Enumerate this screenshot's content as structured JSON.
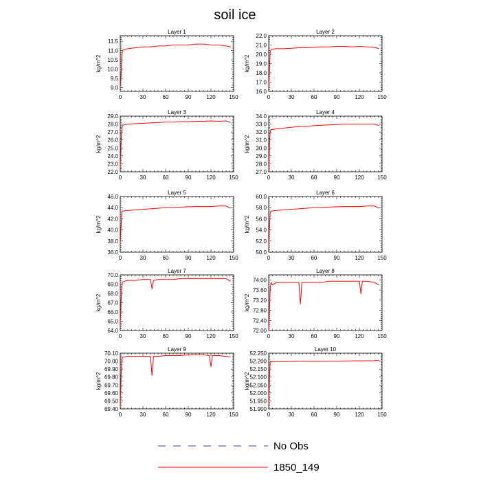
{
  "figure": {
    "title": "soil ice",
    "legend": [
      {
        "label": "No Obs",
        "color": "#3b3bb0",
        "dash": "dashed"
      },
      {
        "label": "1850_149",
        "color": "#ff0000",
        "dash": "solid"
      }
    ]
  },
  "chart_data": [
    {
      "type": "line",
      "title": "Layer 1",
      "ylabel": "kg/m^2",
      "xlim": [
        0,
        150
      ],
      "xticks": [
        0,
        30,
        60,
        90,
        120,
        150
      ],
      "ylim": [
        8.8,
        11.8
      ],
      "yticks": [
        "9.0",
        "9.5",
        "10.0",
        "10.5",
        "11.0",
        "11.5"
      ],
      "series": [
        {
          "name": "1850_149",
          "color": "#ff0000",
          "x": [
            0,
            1,
            2,
            3,
            5,
            10,
            20,
            30,
            40,
            50,
            60,
            70,
            80,
            90,
            100,
            110,
            120,
            130,
            140,
            146
          ],
          "y": [
            9.0,
            9.6,
            10.6,
            11.0,
            11.05,
            11.1,
            11.15,
            11.2,
            11.2,
            11.25,
            11.25,
            11.3,
            11.3,
            11.3,
            11.35,
            11.35,
            11.3,
            11.3,
            11.25,
            11.2
          ]
        }
      ]
    },
    {
      "type": "line",
      "title": "Layer 2",
      "ylabel": "kg/m^2",
      "xlim": [
        0,
        150
      ],
      "xticks": [
        0,
        30,
        60,
        90,
        120,
        150
      ],
      "ylim": [
        16.0,
        22.0
      ],
      "yticks": [
        "16.0",
        "17.0",
        "18.0",
        "19.0",
        "20.0",
        "21.0",
        "22.0"
      ],
      "series": [
        {
          "name": "1850_149",
          "color": "#ff0000",
          "x": [
            0,
            1,
            2,
            3,
            5,
            10,
            20,
            30,
            40,
            50,
            60,
            70,
            80,
            90,
            100,
            110,
            120,
            130,
            140,
            146
          ],
          "y": [
            16.5,
            18.5,
            20.2,
            20.5,
            20.55,
            20.6,
            20.6,
            20.65,
            20.7,
            20.7,
            20.75,
            20.8,
            20.8,
            20.85,
            20.85,
            20.8,
            20.85,
            20.8,
            20.75,
            20.6
          ]
        }
      ]
    },
    {
      "type": "line",
      "title": "Layer 3",
      "ylabel": "kg/m^2",
      "xlim": [
        0,
        150
      ],
      "xticks": [
        0,
        30,
        60,
        90,
        120,
        150
      ],
      "ylim": [
        22.0,
        29.0
      ],
      "yticks": [
        "22.0",
        "23.0",
        "24.0",
        "25.0",
        "26.0",
        "27.0",
        "28.0",
        "29.0"
      ],
      "series": [
        {
          "name": "1850_149",
          "color": "#ff0000",
          "x": [
            0,
            1,
            2,
            3,
            5,
            10,
            20,
            30,
            40,
            50,
            60,
            70,
            80,
            90,
            100,
            110,
            120,
            130,
            140,
            146
          ],
          "y": [
            22.5,
            25.5,
            27.3,
            27.8,
            27.9,
            28.0,
            28.05,
            28.1,
            28.15,
            28.2,
            28.25,
            28.25,
            28.3,
            28.3,
            28.35,
            28.35,
            28.4,
            28.35,
            28.4,
            28.2
          ]
        }
      ]
    },
    {
      "type": "line",
      "title": "Layer 4",
      "ylabel": "kg/m^2",
      "xlim": [
        0,
        150
      ],
      "xticks": [
        0,
        30,
        60,
        90,
        120,
        150
      ],
      "ylim": [
        27.0,
        34.0
      ],
      "yticks": [
        "27.0",
        "28.0",
        "29.0",
        "30.0",
        "31.0",
        "32.0",
        "33.0",
        "34.0"
      ],
      "series": [
        {
          "name": "1850_149",
          "color": "#ff0000",
          "x": [
            0,
            1,
            2,
            3,
            5,
            10,
            20,
            30,
            40,
            50,
            60,
            70,
            80,
            90,
            100,
            110,
            120,
            130,
            140,
            146
          ],
          "y": [
            27.3,
            30.5,
            32.0,
            32.3,
            32.3,
            32.4,
            32.5,
            32.6,
            32.7,
            32.7,
            32.8,
            32.85,
            32.9,
            32.95,
            33.0,
            33.0,
            33.0,
            33.0,
            33.0,
            32.8
          ]
        }
      ]
    },
    {
      "type": "line",
      "title": "Layer 5",
      "ylabel": "kg/m^2",
      "xlim": [
        0,
        150
      ],
      "xticks": [
        0,
        30,
        60,
        90,
        120,
        150
      ],
      "ylim": [
        36.0,
        46.0
      ],
      "yticks": [
        "36.0",
        "38.0",
        "40.0",
        "42.0",
        "44.0",
        "46.0"
      ],
      "series": [
        {
          "name": "1850_149",
          "color": "#ff0000",
          "x": [
            0,
            1,
            2,
            3,
            5,
            10,
            20,
            30,
            40,
            50,
            60,
            70,
            80,
            90,
            100,
            110,
            120,
            130,
            140,
            146
          ],
          "y": [
            37.2,
            40.5,
            43.0,
            43.4,
            43.4,
            43.5,
            43.6,
            43.7,
            43.8,
            43.9,
            44.0,
            44.0,
            44.1,
            44.15,
            44.2,
            44.2,
            44.2,
            44.3,
            44.3,
            43.9
          ]
        }
      ]
    },
    {
      "type": "line",
      "title": "Layer 6",
      "ylabel": "kg/m^2",
      "xlim": [
        0,
        150
      ],
      "xticks": [
        0,
        30,
        60,
        90,
        120,
        150
      ],
      "ylim": [
        50.0,
        60.0
      ],
      "yticks": [
        "50.0",
        "52.0",
        "54.0",
        "56.0",
        "58.0",
        "60.0"
      ],
      "series": [
        {
          "name": "1850_149",
          "color": "#ff0000",
          "x": [
            0,
            1,
            2,
            3,
            5,
            10,
            20,
            30,
            40,
            50,
            60,
            70,
            80,
            90,
            100,
            110,
            120,
            130,
            140,
            146
          ],
          "y": [
            50.8,
            54.5,
            57.0,
            57.4,
            57.4,
            57.5,
            57.6,
            57.7,
            57.8,
            57.9,
            58.0,
            58.0,
            58.1,
            58.15,
            58.2,
            58.2,
            58.2,
            58.3,
            58.3,
            57.9
          ]
        }
      ]
    },
    {
      "type": "line",
      "title": "Layer 7",
      "ylabel": "kg/m^2",
      "xlim": [
        0,
        150
      ],
      "xticks": [
        0,
        30,
        60,
        90,
        120,
        150
      ],
      "ylim": [
        64.0,
        70.0
      ],
      "yticks": [
        "64.0",
        "65.0",
        "66.0",
        "67.0",
        "68.0",
        "69.0",
        "70.0"
      ],
      "series": [
        {
          "name": "1850_149",
          "color": "#ff0000",
          "x": [
            0,
            1,
            2,
            3,
            5,
            10,
            20,
            30,
            40,
            42,
            44,
            50,
            60,
            70,
            80,
            90,
            100,
            110,
            120,
            130,
            140,
            146
          ],
          "y": [
            64.5,
            67.0,
            68.8,
            69.2,
            69.3,
            69.4,
            69.4,
            69.5,
            69.5,
            68.5,
            69.4,
            69.5,
            69.5,
            69.5,
            69.6,
            69.6,
            69.6,
            69.6,
            69.6,
            69.6,
            69.6,
            69.3
          ]
        }
      ]
    },
    {
      "type": "line",
      "title": "Layer 8",
      "ylabel": "kg/m^2",
      "xlim": [
        0,
        150
      ],
      "xticks": [
        0,
        30,
        60,
        90,
        120,
        150
      ],
      "ylim": [
        72.0,
        74.2
      ],
      "yticks": [
        "72.00",
        "72.40",
        "72.80",
        "73.20",
        "73.60",
        "74.00"
      ],
      "series": [
        {
          "name": "1850_149",
          "color": "#ff0000",
          "x": [
            0,
            1,
            2,
            3,
            5,
            10,
            20,
            30,
            40,
            42,
            44,
            50,
            60,
            70,
            80,
            90,
            100,
            110,
            120,
            122,
            124,
            130,
            140,
            146
          ],
          "y": [
            72.0,
            72.8,
            73.6,
            73.9,
            73.8,
            73.9,
            73.9,
            73.9,
            73.9,
            73.05,
            73.9,
            73.9,
            73.9,
            73.9,
            73.95,
            73.95,
            73.95,
            73.95,
            73.95,
            73.45,
            73.95,
            73.95,
            73.9,
            73.8
          ]
        }
      ]
    },
    {
      "type": "line",
      "title": "Layer 9",
      "ylabel": "kg/m^2",
      "xlim": [
        0,
        150
      ],
      "xticks": [
        0,
        30,
        60,
        90,
        120,
        150
      ],
      "ylim": [
        69.4,
        70.1
      ],
      "yticks": [
        "69.40",
        "69.50",
        "69.60",
        "69.70",
        "69.80",
        "69.90",
        "70.00",
        "70.10"
      ],
      "series": [
        {
          "name": "1850_149",
          "color": "#ff0000",
          "x": [
            0,
            1,
            2,
            3,
            5,
            10,
            20,
            30,
            40,
            42,
            44,
            50,
            60,
            70,
            80,
            90,
            100,
            110,
            118,
            120,
            122,
            130,
            140,
            146
          ],
          "y": [
            69.42,
            69.8,
            70.0,
            70.05,
            70.05,
            70.06,
            70.06,
            70.06,
            70.06,
            69.82,
            70.06,
            70.06,
            70.07,
            70.07,
            70.07,
            70.08,
            70.08,
            70.08,
            70.07,
            69.93,
            70.07,
            70.07,
            70.06,
            70.05
          ]
        }
      ]
    },
    {
      "type": "line",
      "title": "Layer 10",
      "ylabel": "kg/m^2",
      "xlim": [
        0,
        150
      ],
      "xticks": [
        0,
        30,
        60,
        90,
        120,
        150
      ],
      "ylim": [
        51.9,
        52.25
      ],
      "yticks": [
        "51.900",
        "51.950",
        "52.000",
        "52.050",
        "52.100",
        "52.150",
        "52.200",
        "52.250"
      ],
      "series": [
        {
          "name": "1850_149",
          "color": "#ff0000",
          "x": [
            0,
            1,
            2,
            3,
            5,
            20,
            40,
            60,
            80,
            100,
            120,
            140,
            146
          ],
          "y": [
            51.92,
            52.1,
            52.19,
            52.196,
            52.197,
            52.197,
            52.199,
            52.2,
            52.2,
            52.201,
            52.202,
            52.203,
            52.205
          ]
        }
      ]
    }
  ]
}
